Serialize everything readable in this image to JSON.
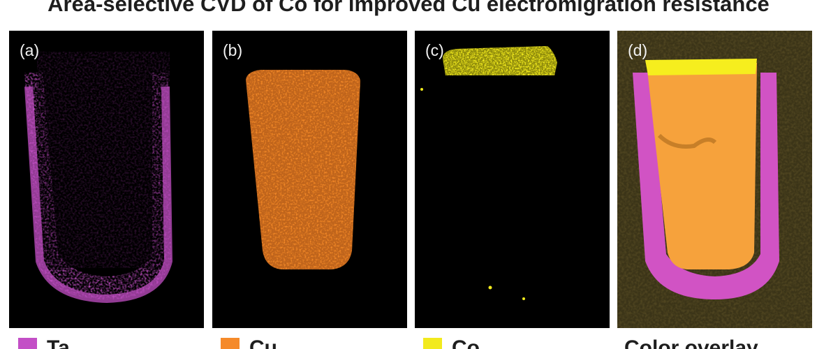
{
  "figure": {
    "title": "Area-selective CVD of Co for improved Cu electromigration resistance"
  },
  "panels": [
    {
      "label": "(a)",
      "element": "Ta",
      "color": "#c34fc6"
    },
    {
      "label": "(b)",
      "element": "Cu",
      "color": "#f58a2a"
    },
    {
      "label": "(c)",
      "element": "Co",
      "color": "#f2ea1d"
    },
    {
      "label": "(d)",
      "element": "overlay",
      "color": "#f6a23c"
    }
  ],
  "legend": [
    {
      "label": "Ta",
      "color": "#c34fc6"
    },
    {
      "label": "Cu",
      "color": "#f58a2a"
    },
    {
      "label": "Co",
      "color": "#f2ea1d"
    },
    {
      "label": "Color overlay",
      "color": ""
    }
  ]
}
